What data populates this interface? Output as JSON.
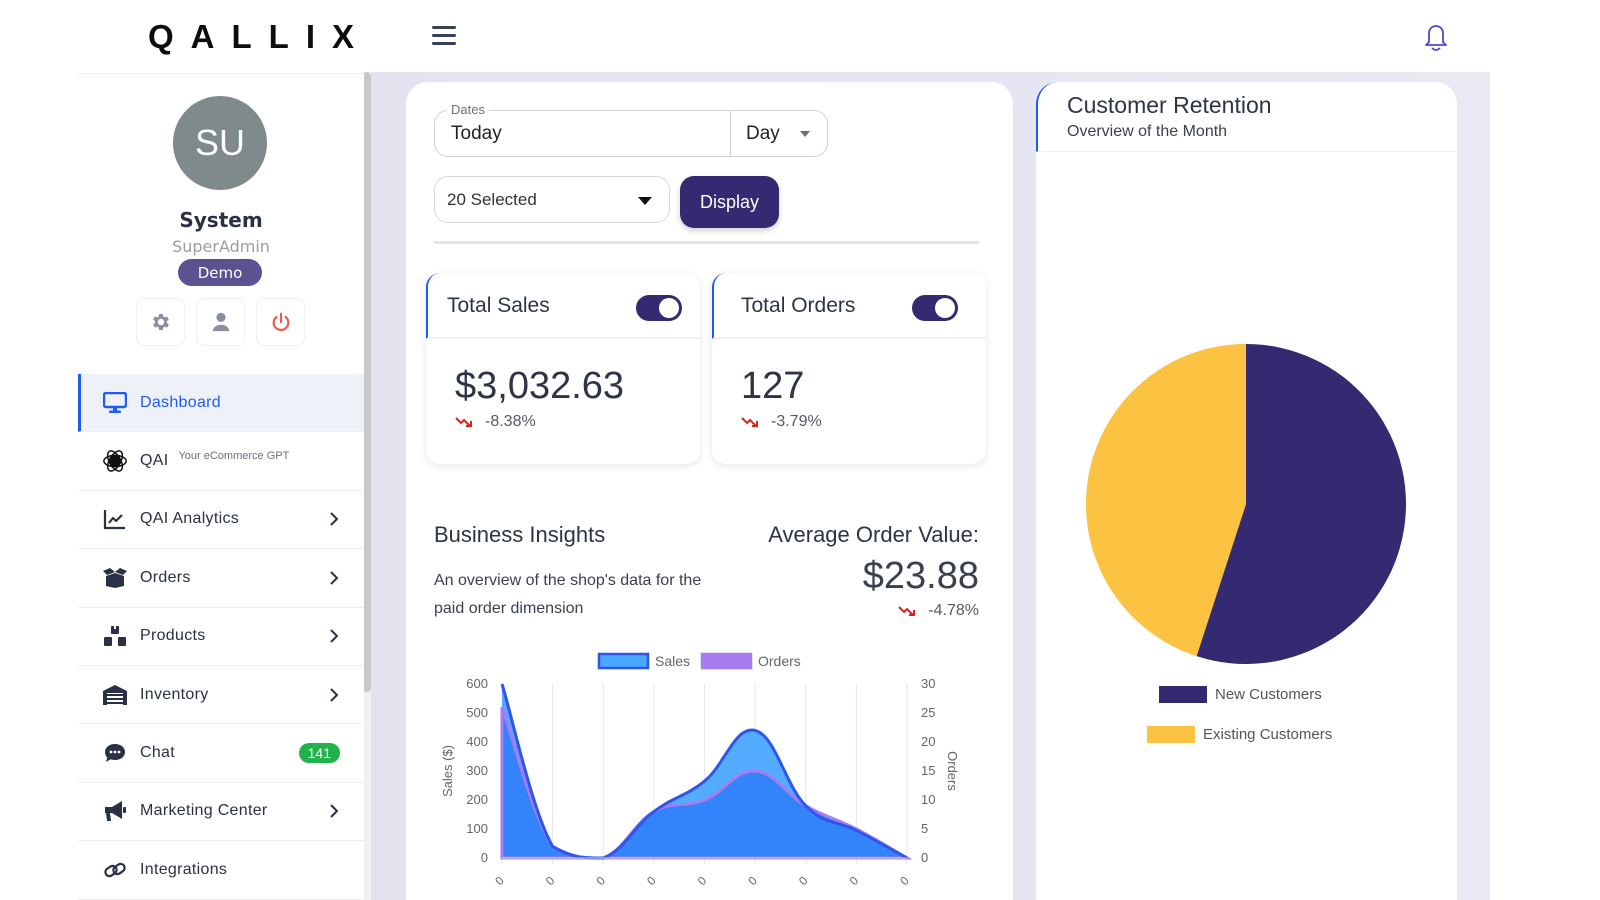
{
  "header": {
    "logo": "QALLIX",
    "menu_icon": "hamburger-icon",
    "notification_icon": "bell-icon"
  },
  "user": {
    "initials": "SU",
    "name": "System",
    "role": "SuperAdmin",
    "badge": "Demo",
    "actions": [
      {
        "name": "settings",
        "icon": "gear-icon"
      },
      {
        "name": "profile",
        "icon": "user-icon"
      },
      {
        "name": "logout",
        "icon": "power-icon"
      }
    ]
  },
  "sidebar": {
    "items": [
      {
        "label": "Dashboard",
        "icon": "monitor-icon",
        "active": true
      },
      {
        "label": "QAI",
        "sublabel": "Your eCommerce GPT",
        "icon": "qai-logo-icon"
      },
      {
        "label": "QAI Analytics",
        "icon": "line-chart-icon",
        "chevron": true
      },
      {
        "label": "Orders",
        "icon": "open-box-icon",
        "chevron": true
      },
      {
        "label": "Products",
        "icon": "boxes-icon",
        "chevron": true
      },
      {
        "label": "Inventory",
        "icon": "warehouse-icon",
        "chevron": true
      },
      {
        "label": "Chat",
        "icon": "chat-bubble-icon",
        "badge": "141"
      },
      {
        "label": "Marketing Center",
        "icon": "megaphone-icon",
        "chevron": true
      },
      {
        "label": "Integrations",
        "icon": "link-icon"
      }
    ]
  },
  "filters": {
    "dates_label": "Dates",
    "dates_value": "Today",
    "dates_unit": "Day",
    "multi_select_value": "20 Selected",
    "display_button": "Display"
  },
  "stats": {
    "total_sales": {
      "title": "Total Sales",
      "value": "$3,032.63",
      "delta": "-8.38%",
      "toggle_on": true
    },
    "total_orders": {
      "title": "Total Orders",
      "value": "127",
      "delta": "-3.79%",
      "toggle_on": true
    }
  },
  "insights": {
    "title": "Business Insights",
    "description": "An overview of the shop's data for the paid order dimension",
    "aov_label": "Average Order Value:",
    "aov_value": "$23.88",
    "aov_delta": "-4.78%"
  },
  "retention": {
    "title": "Customer Retention",
    "subtitle": "Overview of the Month"
  },
  "colors": {
    "primary": "#332a72",
    "accent_blue": "#1e5bf6",
    "negative": "#e02020",
    "badge_green": "#22b24c",
    "sales_fill": "#4aa8ff",
    "orders_fill": "#a67cf0",
    "new_customers": "#332a72",
    "existing_customers": "#fcc242"
  },
  "chart_data": [
    {
      "type": "area",
      "title": "",
      "legend": [
        "Sales",
        "Orders"
      ],
      "legend_position": "top",
      "x": [
        "",
        "",
        "",
        "",
        "",
        "",
        "",
        "",
        ""
      ],
      "series": [
        {
          "name": "Sales",
          "axis": "left",
          "values": [
            600,
            40,
            0,
            160,
            265,
            440,
            180,
            95,
            0
          ]
        },
        {
          "name": "Orders",
          "axis": "right",
          "values": [
            26,
            2,
            0,
            8,
            10,
            15,
            9,
            5,
            0
          ]
        }
      ],
      "ylabel": "Sales ($)",
      "ylim": [
        0,
        600
      ],
      "yticks": [
        0,
        100,
        200,
        300,
        400,
        500,
        600
      ],
      "y2label": "Orders",
      "y2lim": [
        0,
        30
      ],
      "y2ticks": [
        0,
        5,
        10,
        15,
        20,
        25,
        30
      ],
      "grid": "vertical"
    },
    {
      "type": "pie",
      "title": "Customer Retention",
      "categories": [
        "New Customers",
        "Existing Customers"
      ],
      "values": [
        55,
        45
      ],
      "colors": [
        "#332a72",
        "#fcc242"
      ],
      "legend_position": "bottom"
    }
  ]
}
